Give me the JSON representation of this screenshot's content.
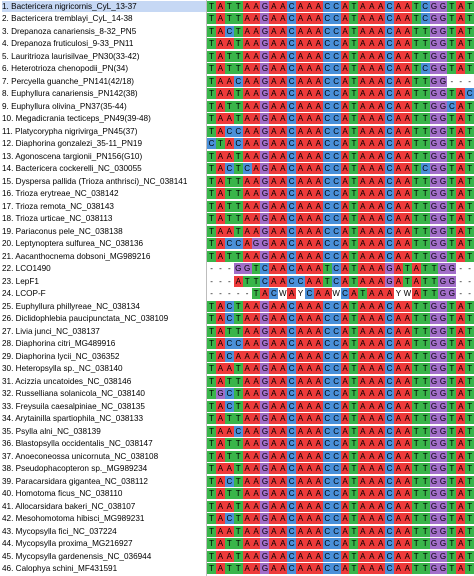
{
  "colors": {
    "A": "#ee3b3b",
    "C": "#4a90d9",
    "G": "#a26ec9",
    "T": "#39b54a",
    "other": "#ffffff",
    "selected_row": "#c6d8f4"
  },
  "rows": [
    {
      "name": "1. Bactericera nigricornis_CyL_13-37",
      "seq": "TATTAAGAACAAACCATAAACAATCGGTAT",
      "selected": true
    },
    {
      "name": "2. Bactericera tremblayi_CyL_14-38",
      "seq": "TATTAAGAACAAACCATAAACAATCGGTAT"
    },
    {
      "name": "3. Drepanoza canariensis_8-32_PN5",
      "seq": "TACTAAGAACAAACCATAAACAATTGGTAT"
    },
    {
      "name": "4. Drepanoza fruticulosi_9-33_PN11",
      "seq": "TAATAAGAACAAACCATAAACAATTGGTAT"
    },
    {
      "name": "5. Lauritrioza laurisilvae_PN30(33-42)",
      "seq": "TATTAAGAACAAACCATAAACAATTGGTAT"
    },
    {
      "name": "6. Heterotrioza chenopodii_PN(34)",
      "seq": "TATTAAGAACAAACCATAAACAATCGGTAT"
    },
    {
      "name": "7. Percyella guanche_PN141(42/18)",
      "seq": "TAACAAGAACAAACCATAAACAATTGG---"
    },
    {
      "name": "8. Euphyllura canariensis_PN142(38)",
      "seq": "TAATAAGAACAAACCATAAACAATTGGTAC"
    },
    {
      "name": "9. Euphyllura olivina_PN37(35-44)",
      "seq": "TATTAAGAACAAACCATAAACAATTGGCAT"
    },
    {
      "name": "10. Megadicrania tecticeps_PN49(39-48)",
      "seq": "TAATAAGAACAAACCATAAACAATTGGTAT"
    },
    {
      "name": "11. Platycorypha nigrivirga_PN45(37)",
      "seq": "TACCAAGAACAAACCATAAACAATTGGTAT"
    },
    {
      "name": "12. Diaphorina gonzalezi_35-11_PN19",
      "seq": "CTACAAGAACAAACCATAAACAATTGGTAT"
    },
    {
      "name": "13. Agonoscena targionii_PN156(G10)",
      "seq": "TAATAAGAACAAACCATAAACAATTGGTAT"
    },
    {
      "name": "14. Bactericera cockerelli_NC_030055",
      "seq": "TACTCAGAACAAACCATAAACAATCGGTAT"
    },
    {
      "name": "15. Dyspersa pallida (Trioza anthrisci)_NC_038141",
      "seq": "TATTAAGAACAAACCATAAACAATTGGTAT"
    },
    {
      "name": "16. Trioza erytreae_NC_038142",
      "seq": "TATTAAGAACAAACCATAAACAATTGGTAT"
    },
    {
      "name": "17. Trioza remota_NC_038143",
      "seq": "TATTAAGAACAAACCATAAACAATTGGTAT"
    },
    {
      "name": "18. Trioza urticae_NC_038113",
      "seq": "TATTAAGAACAAACCATAAACAATTGGTAT"
    },
    {
      "name": "19. Pariaconus pele_NC_038138",
      "seq": "TAATAAGAACAAACCATAAACAATTGGTAT"
    },
    {
      "name": "20. Leptynoptera sulfurea_NC_038136",
      "seq": "TACCAGGAACAAACCATAAACAATTGGTAT"
    },
    {
      "name": "21. Aacanthocnema dobsoni_MG989216",
      "seq": "TATTAAGAACAAACCATAAACAATTGGTAT"
    },
    {
      "name": "22. LCO1490",
      "seq": "---GGTCAACAAATCATAAAGATATTGG--"
    },
    {
      "name": "23. LepF1",
      "seq": "---ATTCAACCAATCATAAAGATATTGG--"
    },
    {
      "name": "24. LCOP-F",
      "seq": "-----TACWAYCAAWCATAAAYWATTGG--"
    },
    {
      "name": "25. Euphyllura phillyreae_NC_038134",
      "seq": "TACTAAGAACAAACCATAAACAATTGGTAT"
    },
    {
      "name": "26. Diclidophlebia paucipunctata_NC_038109",
      "seq": "TACTAAGAACAAACCATAAACAATTGGTAT"
    },
    {
      "name": "27. Livia junci_NC_038137",
      "seq": "TATTAAGAACAAACCATAAACAATTGGTAT"
    },
    {
      "name": "28. Diaphorina citri_MG489916",
      "seq": "TACCAAGAACAAACCATAAACAATTGGTAT"
    },
    {
      "name": "29. Diaphorina lycii_NC_036352",
      "seq": "TACAAAGAACAAACCATAAACAATTGGTAT"
    },
    {
      "name": "30. Heteropsylla sp._NC_038140",
      "seq": "TAATAAGAACAAACCATAAACAATTGGTAT"
    },
    {
      "name": "31. Acizzia uncatoides_NC_038146",
      "seq": "TATTAAGAACAAACCATAAACAATTGGTAT"
    },
    {
      "name": "32. Russelliana solanicola_NC_038140",
      "seq": "TGCTAAGAACAAACCATAAACAATTGGTAT"
    },
    {
      "name": "33. Freysuila caesalpiniae_NC_038135",
      "seq": "TACTAAGAACAAACCATAAACAATTGGTAT"
    },
    {
      "name": "34. Arytainilla spartiophila_NC_038133",
      "seq": "TATTAAGAACAAACCATAAACAATTGGTAT"
    },
    {
      "name": "35. Psylla alni_NC_038139",
      "seq": "TAACAAGAACAAACCATAAACAATTGGTAT"
    },
    {
      "name": "36. Blastopsylla occidentalis_NC_038147",
      "seq": "TATTAAGAACAAACCATAAACAATTGGTAT"
    },
    {
      "name": "37. Anoeconeossa unicornuta_NC_038108",
      "seq": "TATTAAGAACAAACCATAAACAATTGGTAT"
    },
    {
      "name": "38. Pseudophacopteron sp._MG989234",
      "seq": "TAATAAGAACAAACCATAAACAATTGGTAT"
    },
    {
      "name": "39. Paracarsidara gigantea_NC_038112",
      "seq": "TACTAAGAACAAACCATAAACAATTGGTAT"
    },
    {
      "name": "40. Homotoma ficus_NC_038110",
      "seq": "TATTAAGAACAAACCATAAACAATTGGTAT"
    },
    {
      "name": "41. Allocarsidara bakeri_NC_038107",
      "seq": "TAATAAGAACAAACCATAAACAATTGGTAT"
    },
    {
      "name": "42. Mesohomotoma hibisci_MG989231",
      "seq": "TACTAAGAACAAACCATAAACAATTGGTAT"
    },
    {
      "name": "43. Mycopsylla fici_NC_037224",
      "seq": "TAATAAGAACAAACCATAAACAATTGGTAT"
    },
    {
      "name": "44. Mycopsylla proxima_MG216927",
      "seq": "TATTAAGAACAAACCATAAACAATTGGTAT"
    },
    {
      "name": "45. Mycopsylla gardenensis_NC_036944",
      "seq": "TAATAAGAACAAACCATAAACAATTGGTAT"
    },
    {
      "name": "46. Calophya schini_MF431591",
      "seq": "TATTAAGAACAAACCATAAACAATTGGTAT"
    }
  ]
}
